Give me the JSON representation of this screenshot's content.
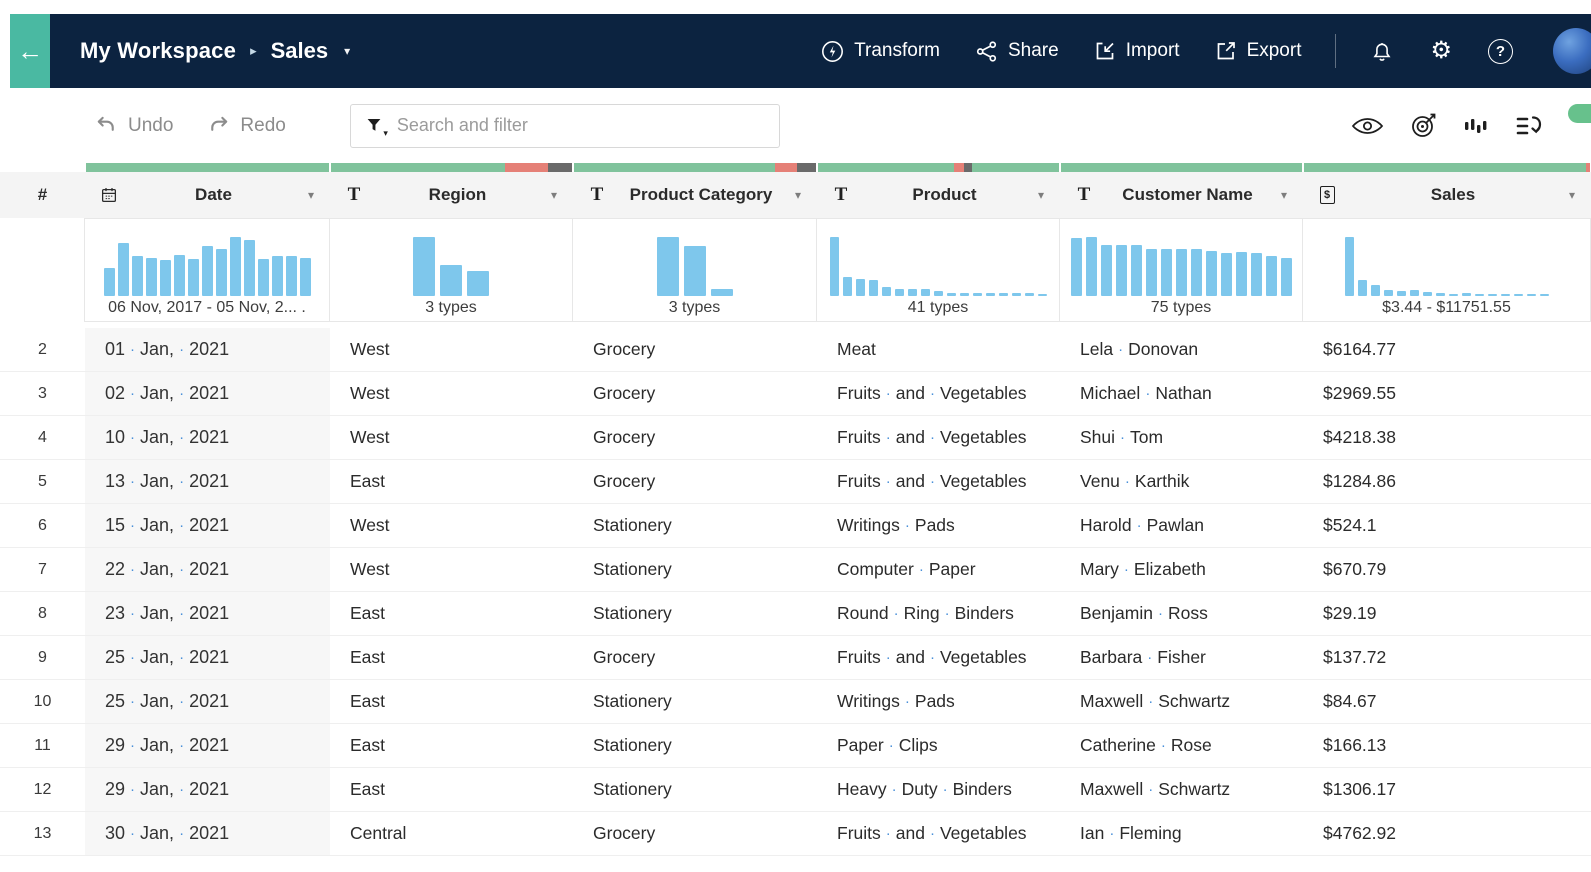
{
  "navbar": {
    "back_icon": "←",
    "breadcrumb": {
      "workspace": "My Workspace",
      "separator": "▸",
      "current": "Sales",
      "caret": "▾"
    },
    "actions": [
      {
        "label": "Transform",
        "icon": "lightning-circle-icon"
      },
      {
        "label": "Share",
        "icon": "share-nodes-icon"
      },
      {
        "label": "Import",
        "icon": "import-box-icon"
      },
      {
        "label": "Export",
        "icon": "export-box-icon"
      }
    ],
    "utility_icons": [
      "bell-icon",
      "gear-icon",
      "help-icon"
    ],
    "gear_glyph": "⚙",
    "help_glyph": "?"
  },
  "toolbar": {
    "undo_label": "Undo",
    "redo_label": "Redo",
    "search_placeholder": "Search and filter",
    "right_icons": [
      "eye-icon",
      "target-icon",
      "bar-chart-icon",
      "steps-icon"
    ]
  },
  "colors": {
    "navy": "#0c2340",
    "teal": "#4ab9a2",
    "histogram_blue": "#7ec7ec",
    "badge_green": "#67c18c",
    "space_dot_blue": "#4a90d9",
    "quality": {
      "green": "#80c39c",
      "red": "#e58077",
      "dark": "#6a6a6a"
    }
  },
  "table": {
    "row_number_header": "#",
    "space_dot": "·",
    "header_caret": "▾",
    "columns": [
      {
        "key": "date",
        "label": "Date",
        "type_icon": "calendar-icon",
        "quality": [
          [
            "green",
            1
          ]
        ],
        "histogram": {
          "type": "bar",
          "bars": [
            0.45,
            0.85,
            0.65,
            0.62,
            0.58,
            0.66,
            0.6,
            0.8,
            0.75,
            0.95,
            0.91,
            0.6,
            0.65,
            0.65,
            0.62
          ],
          "label": "06 Nov, 2017 - 05 Nov, 2... ."
        }
      },
      {
        "key": "region",
        "label": "Region",
        "type_icon": "text-type-icon",
        "quality": [
          [
            "green",
            0.72
          ],
          [
            "red",
            0.18
          ],
          [
            "dark",
            0.1
          ]
        ],
        "histogram": {
          "type": "bar",
          "bars": [
            0.95,
            0.5,
            0.4
          ],
          "label": "3 types"
        }
      },
      {
        "key": "product_category",
        "label": "Product Category",
        "type_icon": "text-type-icon",
        "quality": [
          [
            "green",
            0.83
          ],
          [
            "red",
            0.09
          ],
          [
            "dark",
            0.08
          ]
        ],
        "histogram": {
          "type": "bar",
          "bars": [
            0.95,
            0.8,
            0.12
          ],
          "label": "3 types"
        }
      },
      {
        "key": "product",
        "label": "Product",
        "type_icon": "text-type-icon",
        "quality": [
          [
            "green",
            0.565
          ],
          [
            "red",
            0.04
          ],
          [
            "dark",
            0.035
          ],
          [
            "green",
            0.36
          ]
        ],
        "histogram": {
          "type": "bar",
          "bars": [
            0.95,
            0.3,
            0.28,
            0.25,
            0.14,
            0.12,
            0.12,
            0.11,
            0.08,
            0.05,
            0.05,
            0.05,
            0.05,
            0.05,
            0.05,
            0.05,
            0.04
          ],
          "label": "41 types"
        }
      },
      {
        "key": "customer",
        "label": "Customer Name",
        "type_icon": "text-type-icon",
        "quality": [
          [
            "green",
            1
          ]
        ],
        "histogram": {
          "type": "bar",
          "bars": [
            0.93,
            0.95,
            0.82,
            0.82,
            0.82,
            0.76,
            0.76,
            0.76,
            0.76,
            0.73,
            0.7,
            0.71,
            0.7,
            0.65,
            0.62
          ],
          "label": "75 types"
        }
      },
      {
        "key": "sales",
        "label": "Sales",
        "type_icon": "currency-icon",
        "quality": [
          [
            "green",
            0.985
          ],
          [
            "red",
            0.015
          ]
        ],
        "histogram": {
          "type": "bar",
          "bars": [
            0.95,
            0.25,
            0.17,
            0.1,
            0.08,
            0.1,
            0.06,
            0.05,
            0.04,
            0.05,
            0.03,
            0.03,
            0.03,
            0.03,
            0.02,
            0.02
          ],
          "label": "$3.44 - $11751.55"
        }
      }
    ],
    "rows": [
      {
        "num": "2",
        "date": [
          "01",
          "Jan,",
          "2021"
        ],
        "region": [
          "West"
        ],
        "product_category": [
          "Grocery"
        ],
        "product": [
          "Meat"
        ],
        "customer": [
          "Lela",
          "Donovan"
        ],
        "sales": "$6164.77"
      },
      {
        "num": "3",
        "date": [
          "02",
          "Jan,",
          "2021"
        ],
        "region": [
          "West"
        ],
        "product_category": [
          "Grocery"
        ],
        "product": [
          "Fruits",
          "and",
          "Vegetables"
        ],
        "customer": [
          "Michael",
          "Nathan"
        ],
        "sales": "$2969.55"
      },
      {
        "num": "4",
        "date": [
          "10",
          "Jan,",
          "2021"
        ],
        "region": [
          "West"
        ],
        "product_category": [
          "Grocery"
        ],
        "product": [
          "Fruits",
          "and",
          "Vegetables"
        ],
        "customer": [
          "Shui",
          "Tom"
        ],
        "sales": "$4218.38"
      },
      {
        "num": "5",
        "date": [
          "13",
          "Jan,",
          "2021"
        ],
        "region": [
          "East"
        ],
        "product_category": [
          "Grocery"
        ],
        "product": [
          "Fruits",
          "and",
          "Vegetables"
        ],
        "customer": [
          "Venu",
          "Karthik"
        ],
        "sales": "$1284.86"
      },
      {
        "num": "6",
        "date": [
          "15",
          "Jan,",
          "2021"
        ],
        "region": [
          "West"
        ],
        "product_category": [
          "Stationery"
        ],
        "product": [
          "Writings",
          "Pads"
        ],
        "customer": [
          "Harold",
          "Pawlan"
        ],
        "sales": "$524.1"
      },
      {
        "num": "7",
        "date": [
          "22",
          "Jan,",
          "2021"
        ],
        "region": [
          "West"
        ],
        "product_category": [
          "Stationery"
        ],
        "product": [
          "Computer",
          "Paper"
        ],
        "customer": [
          "Mary",
          "Elizabeth"
        ],
        "sales": "$670.79"
      },
      {
        "num": "8",
        "date": [
          "23",
          "Jan,",
          "2021"
        ],
        "region": [
          "East"
        ],
        "product_category": [
          "Stationery"
        ],
        "product": [
          "Round",
          "Ring",
          "Binders"
        ],
        "customer": [
          "Benjamin",
          "Ross"
        ],
        "sales": "$29.19"
      },
      {
        "num": "9",
        "date": [
          "25",
          "Jan,",
          "2021"
        ],
        "region": [
          "East"
        ],
        "product_category": [
          "Grocery"
        ],
        "product": [
          "Fruits",
          "and",
          "Vegetables"
        ],
        "customer": [
          "Barbara",
          "Fisher"
        ],
        "sales": "$137.72"
      },
      {
        "num": "10",
        "date": [
          "25",
          "Jan,",
          "2021"
        ],
        "region": [
          "East"
        ],
        "product_category": [
          "Stationery"
        ],
        "product": [
          "Writings",
          "Pads"
        ],
        "customer": [
          "Maxwell",
          "Schwartz"
        ],
        "sales": "$84.67"
      },
      {
        "num": "11",
        "date": [
          "29",
          "Jan,",
          "2021"
        ],
        "region": [
          "East"
        ],
        "product_category": [
          "Stationery"
        ],
        "product": [
          "Paper",
          "Clips"
        ],
        "customer": [
          "Catherine",
          "Rose"
        ],
        "sales": "$166.13"
      },
      {
        "num": "12",
        "date": [
          "29",
          "Jan,",
          "2021"
        ],
        "region": [
          "East"
        ],
        "product_category": [
          "Stationery"
        ],
        "product": [
          "Heavy",
          "Duty",
          "Binders"
        ],
        "customer": [
          "Maxwell",
          "Schwartz"
        ],
        "sales": "$1306.17"
      },
      {
        "num": "13",
        "date": [
          "30",
          "Jan,",
          "2021"
        ],
        "region": [
          "Central"
        ],
        "product_category": [
          "Grocery"
        ],
        "product": [
          "Fruits",
          "and",
          "Vegetables"
        ],
        "customer": [
          "Ian",
          "Fleming"
        ],
        "sales": "$4762.92"
      }
    ]
  }
}
